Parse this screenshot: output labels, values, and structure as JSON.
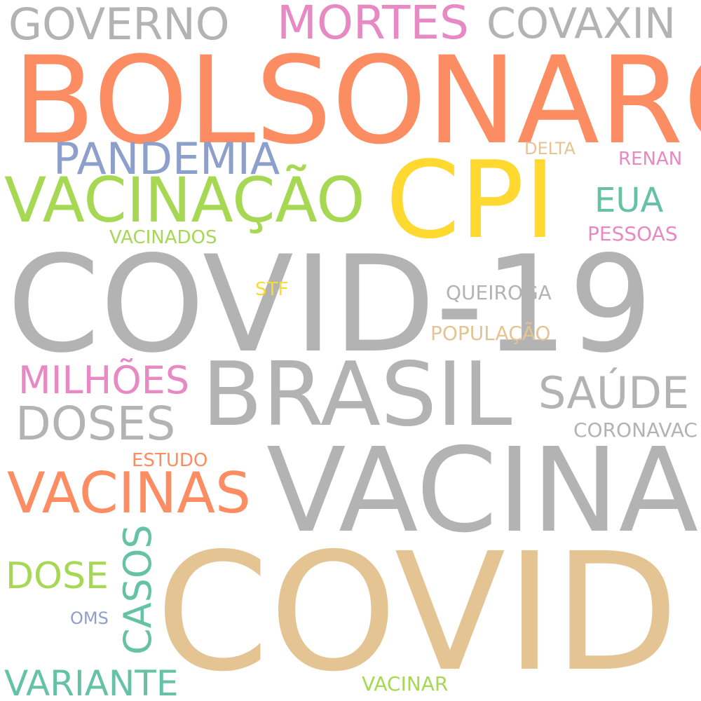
{
  "palette": {
    "gray": "#b3b3b3",
    "orange": "#fc8d62",
    "tan": "#e5c494",
    "green": "#a6d854",
    "blue": "#8da0cb",
    "pink": "#e78ac3",
    "yellow": "#ffd92f",
    "teal": "#66c2a5"
  },
  "words": {
    "bolsonaro": {
      "text": "BOLSONARO",
      "color": "#fc8d62"
    },
    "covid19": {
      "text": "COVID-19",
      "color": "#b3b3b3"
    },
    "covid": {
      "text": "COVID",
      "color": "#e5c494"
    },
    "vacina": {
      "text": "VACINA",
      "color": "#b3b3b3"
    },
    "brasil": {
      "text": "BRASIL",
      "color": "#b3b3b3"
    },
    "cpi": {
      "text": "CPI",
      "color": "#ffd92f"
    },
    "vacinacao": {
      "text": "VACINAÇÃO",
      "color": "#a6d854"
    },
    "pandemia": {
      "text": "PANDEMIA",
      "color": "#8da0cb"
    },
    "governo": {
      "text": "GOVERNO",
      "color": "#b3b3b3"
    },
    "mortes": {
      "text": "MORTES",
      "color": "#e78ac3"
    },
    "covaxin": {
      "text": "COVAXIN",
      "color": "#b3b3b3"
    },
    "vacinas": {
      "text": "VACINAS",
      "color": "#fc8d62"
    },
    "doses": {
      "text": "DOSES",
      "color": "#b3b3b3"
    },
    "milhoes": {
      "text": "MILHÕES",
      "color": "#e78ac3"
    },
    "saude": {
      "text": "SAÚDE",
      "color": "#b3b3b3"
    },
    "eua": {
      "text": "EUA",
      "color": "#66c2a5"
    },
    "variante": {
      "text": "VARIANTE",
      "color": "#66c2a5"
    },
    "casos": {
      "text": "CASOS",
      "color": "#66c2a5"
    },
    "dose": {
      "text": "DOSE",
      "color": "#a6d854"
    },
    "delta": {
      "text": "DELTA",
      "color": "#e5c494"
    },
    "renan": {
      "text": "RENAN",
      "color": "#e78ac3"
    },
    "pessoas": {
      "text": "PESSOAS",
      "color": "#e78ac3"
    },
    "vacinados": {
      "text": "VACINADOS",
      "color": "#a6d854"
    },
    "stf": {
      "text": "STF",
      "color": "#ffd92f"
    },
    "queiroga": {
      "text": "QUEIROGA",
      "color": "#b3b3b3"
    },
    "populacao": {
      "text": "POPULAÇÃO",
      "color": "#e5c494"
    },
    "coronavac": {
      "text": "CORONAVAC",
      "color": "#b3b3b3"
    },
    "estudo": {
      "text": "ESTUDO",
      "color": "#fc8d62"
    },
    "oms": {
      "text": "OMS",
      "color": "#8da0cb"
    },
    "vacinar": {
      "text": "VACINAR",
      "color": "#a6d854"
    }
  }
}
